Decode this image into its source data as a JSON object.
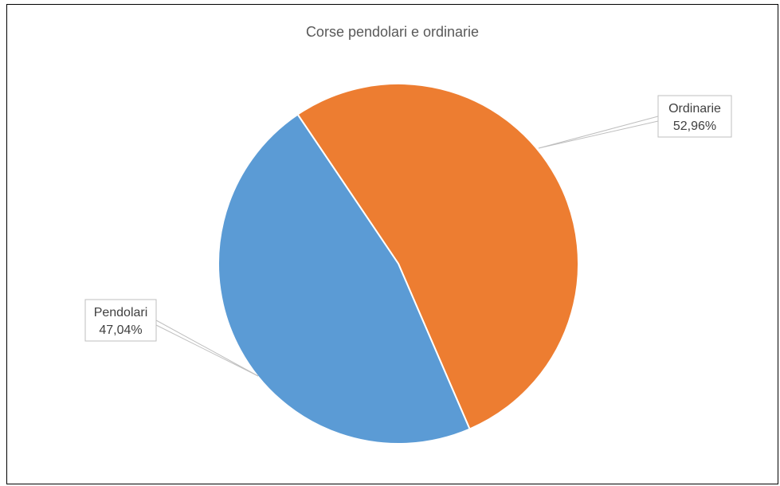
{
  "chart_data": {
    "type": "pie",
    "title": "Corse pendolari e ordinarie",
    "categories": [
      "Ordinarie",
      "Pendolari"
    ],
    "values": [
      52.96,
      47.04
    ],
    "value_labels": [
      "52,96%",
      "47,04%"
    ],
    "colors": [
      "#ED7D31",
      "#5B9BD5"
    ],
    "legend": false
  }
}
